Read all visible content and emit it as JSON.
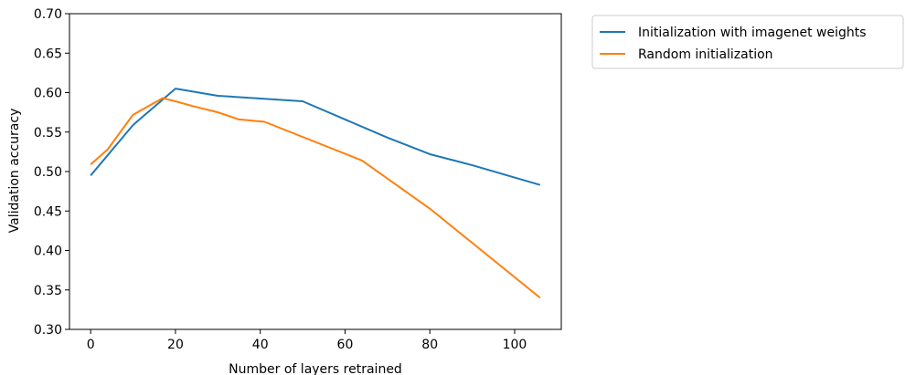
{
  "chart_data": {
    "type": "line",
    "title": "",
    "xlabel": "Number of layers retrained",
    "ylabel": "Validation accuracy",
    "xlim": [
      -5,
      111
    ],
    "ylim": [
      0.3,
      0.7
    ],
    "x_ticks": [
      0,
      20,
      40,
      60,
      80,
      100
    ],
    "x_tick_labels": [
      "0",
      "20",
      "40",
      "60",
      "80",
      "100"
    ],
    "y_ticks": [
      0.3,
      0.35,
      0.4,
      0.45,
      0.5,
      0.55,
      0.6,
      0.65,
      0.7
    ],
    "y_tick_labels": [
      "0.30",
      "0.35",
      "0.40",
      "0.45",
      "0.50",
      "0.55",
      "0.60",
      "0.65",
      "0.70"
    ],
    "grid": false,
    "legend_position": "outside-top-right",
    "series": [
      {
        "name": "Initialization with imagenet weights",
        "color": "#1f77b4",
        "x": [
          0,
          10,
          20,
          30,
          50,
          70,
          80,
          90,
          106
        ],
        "y": [
          0.495,
          0.559,
          0.605,
          0.596,
          0.589,
          0.543,
          0.522,
          0.508,
          0.483
        ]
      },
      {
        "name": "Random initialization",
        "color": "#ff7f0e",
        "x": [
          0,
          4,
          10,
          17,
          20,
          24,
          30,
          35,
          41,
          64,
          80,
          106
        ],
        "y": [
          0.509,
          0.528,
          0.572,
          0.593,
          0.589,
          0.583,
          0.575,
          0.566,
          0.563,
          0.514,
          0.453,
          0.34
        ]
      }
    ]
  }
}
